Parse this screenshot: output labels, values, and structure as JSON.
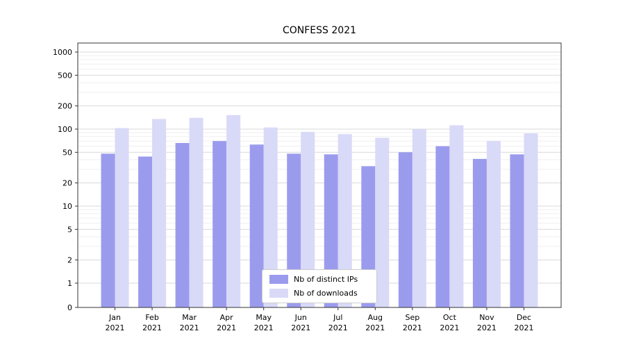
{
  "chart_data": {
    "type": "bar",
    "title": "CONFESS 2021",
    "categories": [
      "Jan 2021",
      "Feb 2021",
      "Mar 2021",
      "Apr 2021",
      "May 2021",
      "Jun 2021",
      "Jul 2021",
      "Aug 2021",
      "Sep 2021",
      "Oct 2021",
      "Nov 2021",
      "Dec 2021"
    ],
    "months": [
      "Jan",
      "Feb",
      "Mar",
      "Apr",
      "May",
      "Jun",
      "Jul",
      "Aug",
      "Sep",
      "Oct",
      "Nov",
      "Dec"
    ],
    "year_label": "2021",
    "series": [
      {
        "name": "Nb of distinct IPs",
        "color": "#9b9bee",
        "values": [
          48,
          44,
          66,
          70,
          63,
          48,
          47,
          33,
          50,
          60,
          41,
          47
        ]
      },
      {
        "name": "Nb of downloads",
        "color": "#d9d9f8",
        "values": [
          103,
          135,
          140,
          152,
          105,
          92,
          86,
          77,
          100,
          112,
          70,
          88
        ]
      }
    ],
    "yscale": "symlog",
    "yticks": [
      0,
      1,
      2,
      5,
      10,
      20,
      50,
      100,
      200,
      500,
      1000
    ],
    "ytick_labels": [
      "0",
      "1",
      "2",
      "5",
      "10",
      "20",
      "50",
      "100",
      "200",
      "500",
      "1000"
    ],
    "ylim": [
      0,
      1300
    ],
    "xlabel": "",
    "ylabel": "",
    "grid": true,
    "legend_position": "lower center"
  }
}
